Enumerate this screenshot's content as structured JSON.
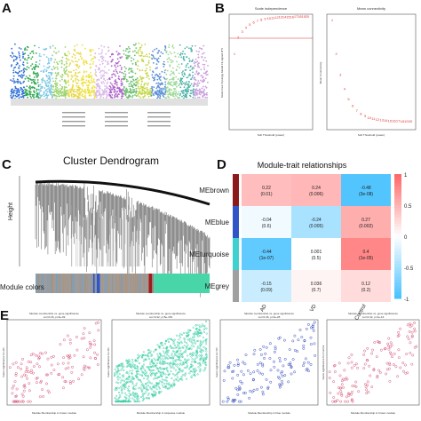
{
  "panels": {
    "A": {
      "label": "A",
      "chromosome_colors": [
        "#2e6fd6",
        "#34a853",
        "#7ec8e3",
        "#9bd36b",
        "#e7d84a",
        "#f0e040",
        "#d9b8e8",
        "#b066cc",
        "#6fbf73",
        "#c7d84a",
        "#5b8fd9",
        "#a1d99b",
        "#4fb3a9",
        "#c9a0dc"
      ],
      "baseline_band_color": "#e0e0e0"
    },
    "B": {
      "label": "B",
      "left": {
        "title": "Scale independence",
        "xlabel": "Soft Threshold (power)",
        "ylabel": "Scale Free Topology Model Fit,signed R^2",
        "color": "#e03131"
      },
      "right": {
        "title": "Mean connectivity",
        "xlabel": "Soft Threshold (power)",
        "ylabel": "Mean Connectivity",
        "color": "#e03131"
      }
    },
    "C": {
      "label": "C",
      "title": "Cluster Dendrogram",
      "ylabel": "Height",
      "color_bar_label": "Module colors",
      "module_bar": [
        {
          "color": "#9c9c9c",
          "fraction": 0.33
        },
        {
          "color": "#2f55c8",
          "fraction": 0.04
        },
        {
          "color": "#9c9c9c",
          "fraction": 0.28
        },
        {
          "color": "#9e1b1b",
          "fraction": 0.02
        },
        {
          "color": "#8a8a8a",
          "fraction": 0.01
        },
        {
          "color": "#48d6a8",
          "fraction": 0.32
        }
      ]
    },
    "D": {
      "label": "D",
      "title": "Module-trait relationships",
      "rows": [
        {
          "name": "MEbrown",
          "swatch": "#8b1a1a",
          "cells": [
            "0.22\n(0.01)",
            "0.24\n(0.006)",
            "-0.48\n(3e-08)"
          ],
          "values": [
            0.22,
            0.24,
            -0.48
          ]
        },
        {
          "name": "MEblue",
          "swatch": "#2f55c8",
          "cells": [
            "-0.04\n(0.6)",
            "-0.24\n(0.005)",
            "0.27\n(0.002)"
          ],
          "values": [
            -0.04,
            -0.24,
            0.27
          ]
        },
        {
          "name": "MEturquoise",
          "swatch": "#3fd0d0",
          "cells": [
            "-0.44\n(1e-07)",
            "0.001\n(0.5)",
            "0.4\n(1e-05)"
          ],
          "values": [
            -0.44,
            0.001,
            0.4
          ]
        },
        {
          "name": "MEgrey",
          "swatch": "#a0a0a0",
          "cells": [
            "-0.15\n(0.09)",
            "0.036\n(0.7)",
            "0.12\n(0.2)"
          ],
          "values": [
            -0.15,
            0.036,
            0.12
          ]
        }
      ],
      "columns": [
        "AD",
        "VD",
        "Control"
      ],
      "scale": [
        "1",
        "0.5",
        "0",
        "-0.5",
        "-1"
      ]
    },
    "E": {
      "label": "E",
      "plots": [
        {
          "title": "Module membership vs. gene significance",
          "subtitle": "cor=0.26, p=4e-09",
          "xlabel": "Module Membership in brown module",
          "ylabel": "Gene significance for AD",
          "color": "#d65a7a"
        },
        {
          "title": "Module membership vs. gene significance",
          "subtitle": "cor=0.42, p=5e-153",
          "xlabel": "Module Membership in turquoise module",
          "ylabel": "Gene significance for AD",
          "color": "#3fd0a8"
        },
        {
          "title": "Module membership vs. gene significance",
          "subtitle": "cor=0.46, p=2e-28",
          "xlabel": "Module Membership in blue module",
          "ylabel": "Gene significance for VD",
          "color": "#3a4fc0"
        },
        {
          "title": "Module membership vs. gene significance",
          "subtitle": "cor=0.42, p=1e-16",
          "xlabel": "Module Membership in brown module",
          "ylabel": "Gene significance for Control",
          "color": "#d65a7a"
        }
      ]
    }
  }
}
